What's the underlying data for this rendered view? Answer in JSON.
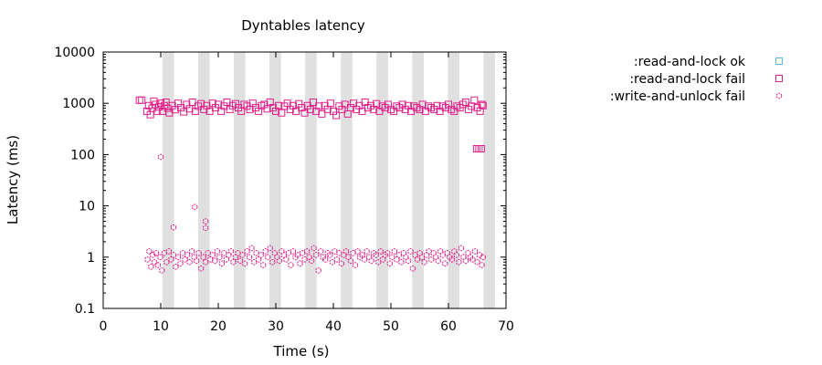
{
  "chart_data": {
    "type": "scatter",
    "title": "Dyntables latency",
    "xlabel": "Time (s)",
    "ylabel": "Latency (ms)",
    "xlim": [
      0,
      70
    ],
    "ylim": [
      0.1,
      10000
    ],
    "yscale": "log",
    "x_ticks": [
      0,
      10,
      20,
      30,
      40,
      50,
      60,
      70
    ],
    "x_tick_labels": [
      "0",
      "10",
      "20",
      "30",
      "40",
      "50",
      "60",
      "70"
    ],
    "y_ticks": [
      0.1,
      1,
      10,
      100,
      1000,
      10000
    ],
    "y_tick_labels": [
      "0.1",
      "1",
      "10",
      "100",
      "1000",
      "10000"
    ],
    "legend_position": "outside-right",
    "grid": false,
    "shaded_intervals": [
      [
        10.3,
        12.3
      ],
      [
        16.5,
        18.5
      ],
      [
        22.7,
        24.7
      ],
      [
        28.9,
        30.9
      ],
      [
        35.1,
        37.1
      ],
      [
        41.3,
        43.3
      ],
      [
        47.5,
        49.5
      ],
      [
        53.7,
        55.7
      ],
      [
        59.9,
        61.9
      ],
      [
        66.1,
        68.1
      ]
    ],
    "shade_color": "#e0e0e0",
    "series": [
      {
        "name": ":read-and-lock ok",
        "marker": "square",
        "color": "#5fb6e6",
        "points": []
      },
      {
        "name": ":read-and-lock fail",
        "marker": "square",
        "color": "#e0218a",
        "points": [
          [
            6.3,
            1150
          ],
          [
            6.7,
            1150
          ],
          [
            7.6,
            700
          ],
          [
            7.9,
            900
          ],
          [
            8.2,
            600
          ],
          [
            8.5,
            800
          ],
          [
            8.8,
            1100
          ],
          [
            9.1,
            950
          ],
          [
            9.4,
            700
          ],
          [
            9.7,
            850
          ],
          [
            10.0,
            1000
          ],
          [
            10.3,
            700
          ],
          [
            10.6,
            900
          ],
          [
            10.9,
            1050
          ],
          [
            11.2,
            800
          ],
          [
            11.5,
            650
          ],
          [
            12.0,
            900
          ],
          [
            12.5,
            750
          ],
          [
            13.0,
            1000
          ],
          [
            13.5,
            820
          ],
          [
            14.0,
            680
          ],
          [
            14.5,
            950
          ],
          [
            15.0,
            780
          ],
          [
            15.5,
            1050
          ],
          [
            16.0,
            700
          ],
          [
            16.5,
            880
          ],
          [
            17.0,
            980
          ],
          [
            17.5,
            760
          ],
          [
            18.0,
            900
          ],
          [
            18.5,
            700
          ],
          [
            19.0,
            1000
          ],
          [
            19.5,
            820
          ],
          [
            20.0,
            950
          ],
          [
            20.5,
            700
          ],
          [
            21.0,
            880
          ],
          [
            21.5,
            1050
          ],
          [
            22.0,
            760
          ],
          [
            22.5,
            900
          ],
          [
            23.0,
            980
          ],
          [
            23.5,
            820
          ],
          [
            24.0,
            700
          ],
          [
            24.5,
            950
          ],
          [
            25.0,
            880
          ],
          [
            25.5,
            760
          ],
          [
            26.0,
            1000
          ],
          [
            26.5,
            820
          ],
          [
            27.0,
            700
          ],
          [
            27.5,
            900
          ],
          [
            28.0,
            950
          ],
          [
            28.5,
            780
          ],
          [
            29.0,
            1050
          ],
          [
            29.5,
            820
          ],
          [
            30.0,
            700
          ],
          [
            30.5,
            900
          ],
          [
            31.0,
            650
          ],
          [
            31.5,
            880
          ],
          [
            32.0,
            1000
          ],
          [
            32.5,
            760
          ],
          [
            33.0,
            900
          ],
          [
            33.5,
            700
          ],
          [
            34.0,
            980
          ],
          [
            34.5,
            820
          ],
          [
            35.0,
            650
          ],
          [
            35.5,
            900
          ],
          [
            36.0,
            760
          ],
          [
            36.5,
            1050
          ],
          [
            37.0,
            700
          ],
          [
            37.5,
            880
          ],
          [
            38.0,
            620
          ],
          [
            38.5,
            900
          ],
          [
            39.0,
            760
          ],
          [
            39.5,
            1000
          ],
          [
            40.0,
            700
          ],
          [
            40.5,
            580
          ],
          [
            41.0,
            880
          ],
          [
            41.5,
            760
          ],
          [
            42.0,
            950
          ],
          [
            42.5,
            620
          ],
          [
            43.0,
            820
          ],
          [
            43.5,
            1000
          ],
          [
            44.0,
            760
          ],
          [
            44.5,
            900
          ],
          [
            45.0,
            700
          ],
          [
            45.5,
            1050
          ],
          [
            46.0,
            820
          ],
          [
            46.5,
            900
          ],
          [
            47.0,
            760
          ],
          [
            47.5,
            980
          ],
          [
            48.0,
            700
          ],
          [
            48.5,
            880
          ],
          [
            49.0,
            820
          ],
          [
            49.5,
            950
          ],
          [
            50.0,
            760
          ],
          [
            50.5,
            700
          ],
          [
            51.0,
            880
          ],
          [
            51.5,
            820
          ],
          [
            52.0,
            950
          ],
          [
            52.5,
            760
          ],
          [
            53.0,
            900
          ],
          [
            53.5,
            700
          ],
          [
            54.0,
            880
          ],
          [
            54.5,
            820
          ],
          [
            55.0,
            760
          ],
          [
            55.5,
            950
          ],
          [
            56.0,
            700
          ],
          [
            56.5,
            880
          ],
          [
            57.0,
            820
          ],
          [
            57.5,
            760
          ],
          [
            58.0,
            900
          ],
          [
            58.5,
            700
          ],
          [
            59.0,
            880
          ],
          [
            59.5,
            820
          ],
          [
            60.0,
            950
          ],
          [
            60.5,
            760
          ],
          [
            61.0,
            700
          ],
          [
            61.5,
            880
          ],
          [
            62.0,
            820
          ],
          [
            62.5,
            950
          ],
          [
            63.0,
            1050
          ],
          [
            63.5,
            760
          ],
          [
            64.0,
            880
          ],
          [
            64.5,
            1150
          ],
          [
            65.0,
            820
          ],
          [
            65.5,
            700
          ],
          [
            65.8,
            950
          ],
          [
            66.0,
            900
          ],
          [
            64.9,
            130
          ],
          [
            65.3,
            130
          ],
          [
            65.7,
            130
          ]
        ]
      },
      {
        "name": ":write-and-unlock fail",
        "marker": "circle",
        "color": "#e0218a",
        "points": [
          [
            7.7,
            0.9
          ],
          [
            8.0,
            1.3
          ],
          [
            8.3,
            0.65
          ],
          [
            8.6,
            1.1
          ],
          [
            8.9,
            0.8
          ],
          [
            9.2,
            1.2
          ],
          [
            9.5,
            0.7
          ],
          [
            9.9,
            1.0
          ],
          [
            10.2,
            0.55
          ],
          [
            10.6,
            1.2
          ],
          [
            11.0,
            0.8
          ],
          [
            11.4,
            1.3
          ],
          [
            11.8,
            0.9
          ],
          [
            12.2,
            1.1
          ],
          [
            12.6,
            0.65
          ],
          [
            13.0,
            1.0
          ],
          [
            13.4,
            0.75
          ],
          [
            13.8,
            1.2
          ],
          [
            14.2,
            0.9
          ],
          [
            14.6,
            1.1
          ],
          [
            15.0,
            0.8
          ],
          [
            15.4,
            1.3
          ],
          [
            15.8,
            1.0
          ],
          [
            16.2,
            0.85
          ],
          [
            16.6,
            1.2
          ],
          [
            17.0,
            0.6
          ],
          [
            17.4,
            1.0
          ],
          [
            17.8,
            0.8
          ],
          [
            18.2,
            1.2
          ],
          [
            18.6,
            0.9
          ],
          [
            19.0,
            1.1
          ],
          [
            19.4,
            0.85
          ],
          [
            19.8,
            1.3
          ],
          [
            20.2,
            1.0
          ],
          [
            20.6,
            0.75
          ],
          [
            21.0,
            1.2
          ],
          [
            21.4,
            0.9
          ],
          [
            21.8,
            1.1
          ],
          [
            22.2,
            1.3
          ],
          [
            22.6,
            0.8
          ],
          [
            23.0,
            1.0
          ],
          [
            23.4,
            1.2
          ],
          [
            23.8,
            0.85
          ],
          [
            24.2,
            1.1
          ],
          [
            24.6,
            0.75
          ],
          [
            25.0,
            1.3
          ],
          [
            25.4,
            1.0
          ],
          [
            25.8,
            1.5
          ],
          [
            26.2,
            0.8
          ],
          [
            26.6,
            1.2
          ],
          [
            27.0,
            0.9
          ],
          [
            27.4,
            1.1
          ],
          [
            27.8,
            0.7
          ],
          [
            28.2,
            1.3
          ],
          [
            28.6,
            1.0
          ],
          [
            29.0,
            1.5
          ],
          [
            29.4,
            0.8
          ],
          [
            29.8,
            1.2
          ],
          [
            30.2,
            1.0
          ],
          [
            30.6,
            0.85
          ],
          [
            31.0,
            1.3
          ],
          [
            31.4,
            1.1
          ],
          [
            31.8,
            0.9
          ],
          [
            32.2,
            1.2
          ],
          [
            32.6,
            0.7
          ],
          [
            33.0,
            1.3
          ],
          [
            33.4,
            1.0
          ],
          [
            33.8,
            1.1
          ],
          [
            34.2,
            0.75
          ],
          [
            34.6,
            1.2
          ],
          [
            35.0,
            0.9
          ],
          [
            35.4,
            1.3
          ],
          [
            35.8,
            1.0
          ],
          [
            36.2,
            0.85
          ],
          [
            36.6,
            1.5
          ],
          [
            37.0,
            1.1
          ],
          [
            37.4,
            0.55
          ],
          [
            37.8,
            1.3
          ],
          [
            38.2,
            1.0
          ],
          [
            38.6,
            0.9
          ],
          [
            39.0,
            1.2
          ],
          [
            39.4,
            1.1
          ],
          [
            39.8,
            0.8
          ],
          [
            40.2,
            1.3
          ],
          [
            40.6,
            0.9
          ],
          [
            41.0,
            1.2
          ],
          [
            41.4,
            0.75
          ],
          [
            41.8,
            1.1
          ],
          [
            42.2,
            1.3
          ],
          [
            42.6,
            1.0
          ],
          [
            43.0,
            0.85
          ],
          [
            43.4,
            1.2
          ],
          [
            43.8,
            0.7
          ],
          [
            44.2,
            1.3
          ],
          [
            44.6,
            1.0
          ],
          [
            45.0,
            1.1
          ],
          [
            45.4,
            0.9
          ],
          [
            45.8,
            1.3
          ],
          [
            46.2,
            1.0
          ],
          [
            46.6,
            0.85
          ],
          [
            47.0,
            1.2
          ],
          [
            47.4,
            1.1
          ],
          [
            47.8,
            0.8
          ],
          [
            48.2,
            1.3
          ],
          [
            48.6,
            0.9
          ],
          [
            49.0,
            1.1
          ],
          [
            49.4,
            1.2
          ],
          [
            49.8,
            0.75
          ],
          [
            50.2,
            1.0
          ],
          [
            50.6,
            1.3
          ],
          [
            51.0,
            0.9
          ],
          [
            51.4,
            1.1
          ],
          [
            51.8,
            0.8
          ],
          [
            52.2,
            1.2
          ],
          [
            52.6,
            1.0
          ],
          [
            53.0,
            0.85
          ],
          [
            53.4,
            1.3
          ],
          [
            53.8,
            0.6
          ],
          [
            54.2,
            1.1
          ],
          [
            54.6,
            0.9
          ],
          [
            55.0,
            1.2
          ],
          [
            55.4,
            1.0
          ],
          [
            55.8,
            0.8
          ],
          [
            56.2,
            1.1
          ],
          [
            56.6,
            1.3
          ],
          [
            57.0,
            0.9
          ],
          [
            57.4,
            1.2
          ],
          [
            57.8,
            1.0
          ],
          [
            58.2,
            0.85
          ],
          [
            58.6,
            1.3
          ],
          [
            59.0,
            1.1
          ],
          [
            59.4,
            0.75
          ],
          [
            59.8,
            1.2
          ],
          [
            60.2,
            1.0
          ],
          [
            60.6,
            0.9
          ],
          [
            61.0,
            1.3
          ],
          [
            61.4,
            1.1
          ],
          [
            61.8,
            0.8
          ],
          [
            62.2,
            1.5
          ],
          [
            62.6,
            1.0
          ],
          [
            63.0,
            0.85
          ],
          [
            63.4,
            1.2
          ],
          [
            63.8,
            1.0
          ],
          [
            64.2,
            0.9
          ],
          [
            64.6,
            1.3
          ],
          [
            65.0,
            0.8
          ],
          [
            65.4,
            1.1
          ],
          [
            65.8,
            0.7
          ],
          [
            66.0,
            1.0
          ],
          [
            10.0,
            90
          ],
          [
            12.2,
            3.8
          ],
          [
            15.9,
            9.5
          ],
          [
            17.8,
            5.0
          ],
          [
            17.8,
            3.7
          ]
        ]
      }
    ]
  }
}
